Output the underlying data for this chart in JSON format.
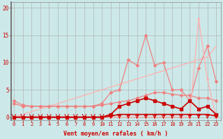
{
  "x": [
    0,
    1,
    2,
    3,
    4,
    5,
    6,
    7,
    8,
    9,
    10,
    11,
    12,
    13,
    14,
    15,
    16,
    17,
    18,
    19,
    20,
    21,
    22,
    23
  ],
  "line_diag": [
    0.0,
    0.5,
    1.0,
    1.5,
    2.0,
    2.5,
    3.0,
    3.5,
    4.0,
    4.5,
    5.0,
    5.5,
    6.0,
    6.5,
    7.0,
    7.5,
    8.0,
    8.5,
    9.0,
    9.5,
    10.0,
    10.5,
    11.0,
    13.0
  ],
  "line_flat": [
    2.5,
    2.0,
    2.0,
    2.0,
    2.0,
    2.0,
    2.0,
    2.0,
    2.0,
    2.0,
    2.2,
    2.5,
    2.8,
    3.0,
    3.5,
    4.0,
    4.5,
    4.5,
    4.2,
    4.0,
    4.0,
    3.5,
    3.5,
    3.0
  ],
  "line_peak1": [
    3.0,
    2.2,
    2.0,
    2.0,
    2.0,
    2.0,
    2.0,
    2.0,
    2.0,
    2.0,
    2.5,
    4.5,
    5.0,
    10.5,
    9.5,
    15.0,
    9.5,
    10.0,
    5.0,
    5.0,
    3.0,
    9.0,
    13.0,
    6.5
  ],
  "line_spike": [
    0.0,
    0.0,
    0.0,
    0.0,
    0.0,
    0.0,
    0.0,
    0.0,
    0.0,
    0.0,
    0.0,
    0.0,
    0.0,
    0.0,
    0.0,
    0.0,
    0.0,
    0.0,
    0.0,
    0.0,
    0.0,
    18.0,
    7.0,
    0.0
  ],
  "line_red_mid": [
    0.0,
    0.0,
    0.0,
    0.0,
    0.0,
    0.0,
    0.0,
    0.0,
    0.0,
    0.0,
    0.0,
    0.5,
    2.0,
    2.5,
    3.0,
    3.5,
    3.0,
    2.5,
    2.0,
    1.5,
    3.0,
    1.5,
    2.0,
    0.5
  ],
  "line_red_zero": [
    0.0,
    0.0,
    0.0,
    0.0,
    0.0,
    0.0,
    0.0,
    0.0,
    0.0,
    0.0,
    0.0,
    0.2,
    0.5,
    0.5,
    0.5,
    0.5,
    0.5,
    0.5,
    0.5,
    0.5,
    0.5,
    0.5,
    0.5,
    0.2
  ],
  "bg_color": "#cce8e8",
  "grid_color": "#aaaaaa",
  "pink_color": "#f08080",
  "light_pink": "#ffb0b0",
  "dark_red": "#cc0000",
  "xlabel": "Vent moyen/en rafales ( km/h )",
  "yticks": [
    0,
    5,
    10,
    15,
    20
  ],
  "xlim": [
    -0.3,
    23.5
  ],
  "ylim": [
    -0.5,
    21
  ],
  "title": ""
}
